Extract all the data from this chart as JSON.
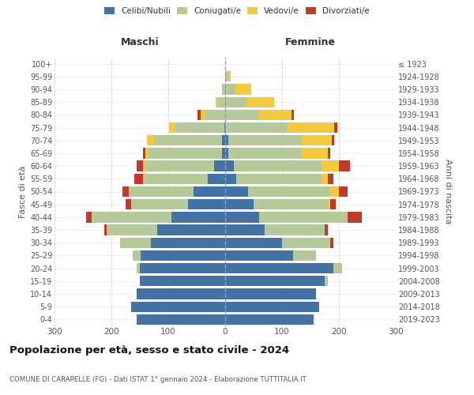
{
  "age_groups": [
    "0-4",
    "5-9",
    "10-14",
    "15-19",
    "20-24",
    "25-29",
    "30-34",
    "35-39",
    "40-44",
    "45-49",
    "50-54",
    "55-59",
    "60-64",
    "65-69",
    "70-74",
    "75-79",
    "80-84",
    "85-89",
    "90-94",
    "95-99",
    "100+"
  ],
  "birth_years": [
    "2019-2023",
    "2014-2018",
    "2009-2013",
    "2004-2008",
    "1999-2003",
    "1994-1998",
    "1989-1993",
    "1984-1988",
    "1979-1983",
    "1974-1978",
    "1969-1973",
    "1964-1968",
    "1959-1963",
    "1954-1958",
    "1949-1953",
    "1944-1948",
    "1939-1943",
    "1934-1938",
    "1929-1933",
    "1924-1928",
    "≤ 1923"
  ],
  "maschi": {
    "celibe": [
      155,
      165,
      155,
      150,
      150,
      148,
      130,
      120,
      95,
      65,
      55,
      30,
      20,
      5,
      5,
      2,
      0,
      0,
      0,
      0,
      0
    ],
    "coniugato": [
      0,
      0,
      0,
      0,
      5,
      15,
      55,
      88,
      140,
      100,
      115,
      115,
      120,
      130,
      120,
      85,
      35,
      12,
      5,
      0,
      0
    ],
    "vedovo": [
      0,
      0,
      0,
      0,
      0,
      0,
      0,
      0,
      0,
      0,
      0,
      0,
      5,
      5,
      12,
      12,
      8,
      5,
      0,
      0,
      0
    ],
    "divorziato": [
      0,
      0,
      0,
      0,
      0,
      0,
      0,
      5,
      10,
      10,
      10,
      15,
      10,
      5,
      0,
      0,
      5,
      0,
      0,
      0,
      0
    ]
  },
  "femmine": {
    "nubile": [
      155,
      165,
      160,
      175,
      190,
      120,
      100,
      70,
      60,
      50,
      40,
      20,
      15,
      5,
      5,
      0,
      0,
      0,
      0,
      0,
      0
    ],
    "coniugata": [
      0,
      0,
      0,
      5,
      15,
      40,
      85,
      105,
      155,
      130,
      145,
      150,
      155,
      130,
      130,
      110,
      58,
      38,
      18,
      5,
      0
    ],
    "vedova": [
      0,
      0,
      0,
      0,
      0,
      0,
      0,
      0,
      0,
      5,
      15,
      10,
      30,
      45,
      52,
      82,
      58,
      48,
      28,
      5,
      0
    ],
    "divorziata": [
      0,
      0,
      0,
      0,
      0,
      0,
      5,
      5,
      25,
      10,
      15,
      10,
      20,
      5,
      5,
      5,
      5,
      0,
      0,
      0,
      0
    ]
  },
  "colors": {
    "celibe": "#4472a4",
    "coniugato": "#b5c99a",
    "vedovo": "#f5c842",
    "divorziato": "#c0392b"
  },
  "legend_labels": [
    "Celibi/Nubili",
    "Coniugati/e",
    "Vedovi/e",
    "Divorziati/e"
  ],
  "title": "Popolazione per età, sesso e stato civile - 2024",
  "subtitle": "COMUNE DI CARAPELLE (FG) - Dati ISTAT 1° gennaio 2024 - Elaborazione TUTTITALIA.IT",
  "label_maschi": "Maschi",
  "label_femmine": "Femmine",
  "ylabel_left": "Fasce di età",
  "ylabel_right": "Anni di nascita",
  "xlim": 300,
  "bg_color": "#ffffff",
  "grid_color": "#cccccc"
}
